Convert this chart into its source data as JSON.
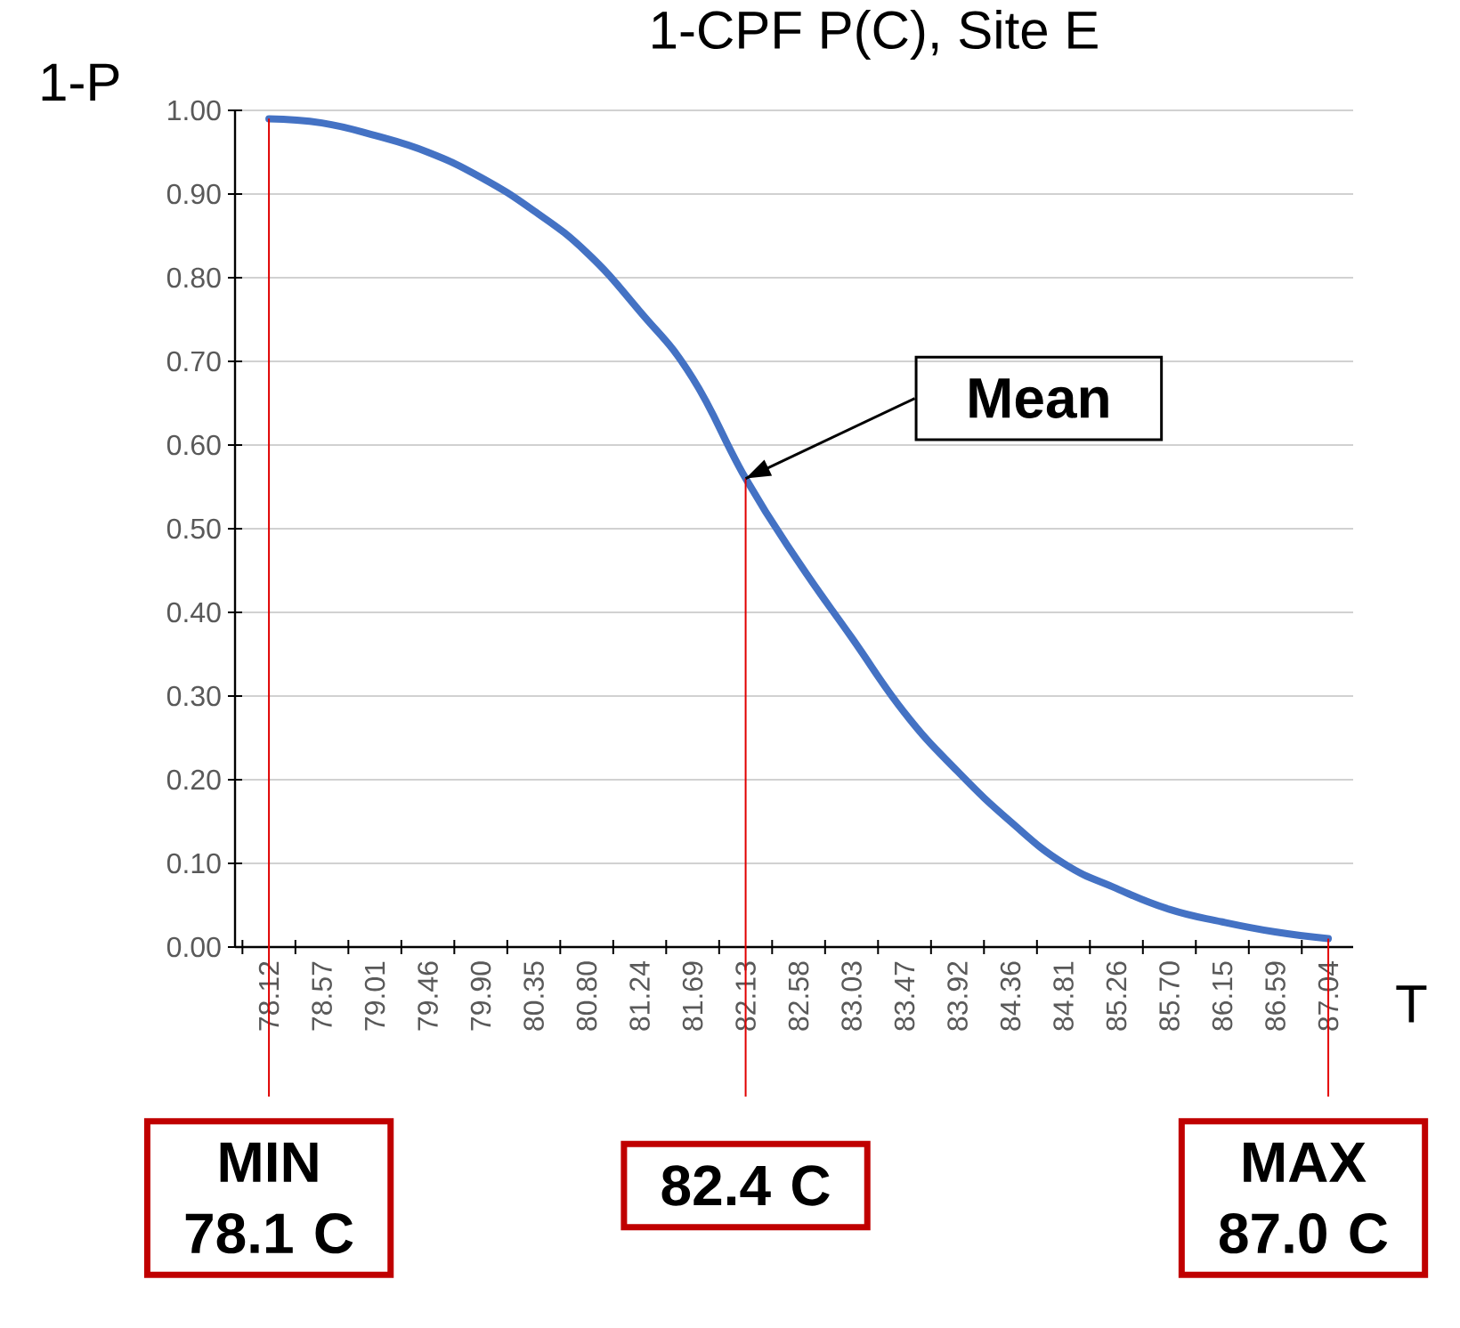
{
  "chart_data": {
    "type": "line",
    "title": "1-CPF P(C), Site E",
    "xlabel": "T",
    "ylabel": "1-P",
    "categories": [
      "78.12",
      "78.57",
      "79.01",
      "79.46",
      "79.90",
      "80.35",
      "80.80",
      "81.24",
      "81.69",
      "82.13",
      "82.58",
      "83.03",
      "83.47",
      "83.92",
      "84.36",
      "84.81",
      "85.26",
      "85.70",
      "86.15",
      "86.59",
      "87.04"
    ],
    "series": [
      {
        "color": "#4472c4",
        "values": [
          0.99,
          0.985,
          0.97,
          0.95,
          0.92,
          0.88,
          0.83,
          0.76,
          0.68,
          0.56,
          0.46,
          0.37,
          0.28,
          0.21,
          0.15,
          0.1,
          0.07,
          0.045,
          0.03,
          0.018,
          0.01
        ]
      }
    ],
    "ylim": [
      0,
      1
    ],
    "yticks": [
      {
        "value": 0,
        "label": "0.00"
      },
      {
        "value": 0.1,
        "label": "0.10"
      },
      {
        "value": 0.2,
        "label": "0.20"
      },
      {
        "value": 0.3,
        "label": "0.30"
      },
      {
        "value": 0.4,
        "label": "0.40"
      },
      {
        "value": 0.5,
        "label": "0.50"
      },
      {
        "value": 0.6,
        "label": "0.60"
      },
      {
        "value": 0.7,
        "label": "0.70"
      },
      {
        "value": 0.8,
        "label": "0.80"
      },
      {
        "value": 0.9,
        "label": "0.90"
      },
      {
        "value": 1,
        "label": "1.00"
      }
    ],
    "grid": "y",
    "marker": "none",
    "line_style": "solid",
    "ref_lines": [
      {
        "axis": "x",
        "value": "78.12",
        "color": "#e00000"
      },
      {
        "axis": "x",
        "value": "82.13",
        "color": "#e00000"
      }
    ],
    "annotations": [
      {
        "text": "Mean",
        "x": "82.13",
        "y": 0.56
      },
      "MIN 78.1 C",
      "82.4 C",
      {
        "text": "MAX 87.0 C",
        "x": "87.04",
        "y": 0.01
      }
    ]
  }
}
